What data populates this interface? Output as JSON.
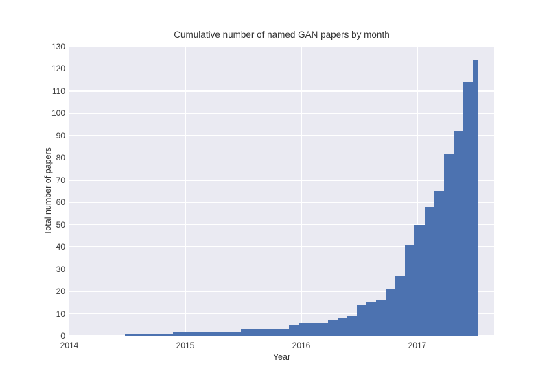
{
  "figure": {
    "title": "Cumulative number of named GAN papers by month",
    "xlabel": "Year",
    "ylabel": "Total number of papers"
  },
  "chart_data": {
    "type": "bar",
    "title": "Cumulative number of named GAN papers by month",
    "xlabel": "Year",
    "ylabel": "Total number of papers",
    "grid": true,
    "legend_position": "none",
    "background_color": "#eaeaf2",
    "grid_color": "#ffffff",
    "bar_color": "#4c72b0",
    "text_color": "#333333",
    "ylim": [
      0,
      130
    ],
    "y_ticks": [
      0,
      10,
      20,
      30,
      40,
      50,
      60,
      70,
      80,
      90,
      100,
      110,
      120,
      130
    ],
    "x_tick_labels": [
      "2014",
      "2015",
      "2016",
      "2017"
    ],
    "x_axis_start_year": 2014,
    "x_axis_end_year_fraction": 2017.66,
    "months": [
      "2014-06",
      "2014-07",
      "2014-08",
      "2014-09",
      "2014-10",
      "2014-11",
      "2014-12",
      "2015-01",
      "2015-02",
      "2015-03",
      "2015-04",
      "2015-05",
      "2015-06",
      "2015-07",
      "2015-08",
      "2015-09",
      "2015-10",
      "2015-11",
      "2015-12",
      "2016-01",
      "2016-02",
      "2016-03",
      "2016-04",
      "2016-05",
      "2016-06",
      "2016-07",
      "2016-08",
      "2016-09",
      "2016-10",
      "2016-11",
      "2016-12",
      "2017-01",
      "2017-02",
      "2017-03",
      "2017-04",
      "2017-05",
      "2017-06"
    ],
    "values": [
      1,
      1,
      1,
      1,
      1,
      2,
      2,
      2,
      2,
      2,
      2,
      2,
      3,
      3,
      3,
      3,
      3,
      5,
      6,
      6,
      6,
      7,
      8,
      9,
      14,
      15,
      16,
      21,
      27,
      41,
      50,
      58,
      65,
      82,
      92,
      114,
      124
    ]
  }
}
